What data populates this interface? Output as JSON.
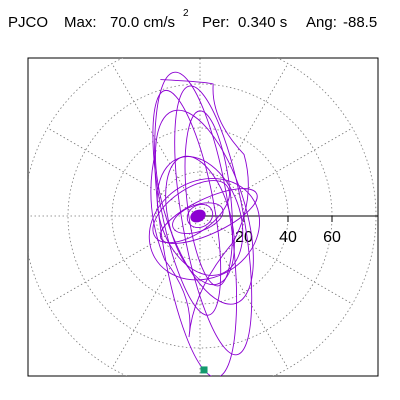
{
  "header": {
    "station": "PJCO",
    "max_label": "Max:",
    "max_value": "70.0 cm/s",
    "max_exp": "2",
    "per_label": "Per:",
    "per_value": "0.340 s",
    "ang_label": "Ang:",
    "ang_value": "-88.5"
  },
  "colors": {
    "trace": "#8c00d2",
    "grid": "#7a7a7a",
    "axis": "#000000",
    "frame": "#000000",
    "peak_marker": "#149a6e"
  },
  "chart_data": {
    "type": "scatter",
    "subtype": "polar particle-motion plot",
    "radial_ticks": [
      20,
      40,
      60
    ],
    "radial_range": [
      0,
      80
    ],
    "grid": true,
    "grid_rings": [
      20,
      40,
      60,
      80
    ],
    "grid_spokes_deg": [
      0,
      30,
      60,
      90,
      120,
      150,
      180,
      210,
      240,
      270,
      300,
      330
    ],
    "max_amplitude": 70.0,
    "period_s": 0.34,
    "peak_angle_deg": -88.5,
    "series": [
      {
        "values": [
          [
            -18,
            62
          ],
          [
            6,
            60
          ],
          [
            20,
            28
          ],
          [
            15,
            -12
          ],
          [
            -5,
            -55
          ],
          [
            -16,
            -20
          ],
          [
            -20,
            30
          ]
        ]
      }
    ]
  }
}
